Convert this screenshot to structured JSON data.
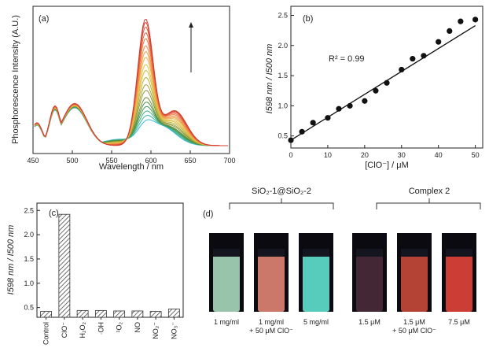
{
  "panels": {
    "a": "(a)",
    "b": "(b)",
    "c": "(c)",
    "d": "(d)"
  },
  "chart_data": [
    {
      "type": "line",
      "panel": "(a)",
      "xlabel": "Wavelength / nm",
      "ylabel": "Phosphorescence Intensity (A.U.)",
      "xlim": [
        450,
        700
      ],
      "xticks": [
        "450",
        "500",
        "550",
        "600",
        "650",
        "700"
      ],
      "yticks_shown": false,
      "annotation": "arrow pointing up (increasing intensity)",
      "peak_nm": 593,
      "series_peak_values": [
        0.12,
        0.16,
        0.2,
        0.24,
        0.28,
        0.32,
        0.38,
        0.43,
        0.49,
        0.55,
        0.6,
        0.66,
        0.71,
        0.76,
        0.82,
        0.87,
        0.92,
        0.96,
        0.99
      ],
      "series_colors": [
        "#3ab7d8",
        "#3ab4a8",
        "#44b07a",
        "#3f9a55",
        "#4f8e45",
        "#70913f",
        "#8c9a3c",
        "#a4a238",
        "#bdb03a",
        "#d2bd40",
        "#e3c346",
        "#ebb34a",
        "#eea24a",
        "#ee8f45",
        "#eb7a40",
        "#e6653b",
        "#e05537",
        "#d94634",
        "#d33a31"
      ]
    },
    {
      "type": "scatter",
      "panel": "(b)",
      "xlabel": "[ClO⁻] / μM",
      "ylabel": "I598 nm / I500 nm",
      "xlim": [
        0,
        52
      ],
      "ylim": [
        0.3,
        2.65
      ],
      "xticks": [
        "0",
        "10",
        "20",
        "30",
        "40",
        "50"
      ],
      "yticks": [
        "0.5",
        "1.0",
        "1.5",
        "2.0",
        "2.5"
      ],
      "annotation": "R² = 0.99",
      "x": [
        0,
        3,
        6,
        10,
        13,
        16,
        20,
        23,
        26,
        30,
        33,
        36,
        40,
        43,
        46,
        50
      ],
      "y": [
        0.43,
        0.57,
        0.72,
        0.8,
        0.95,
        1.0,
        1.08,
        1.25,
        1.38,
        1.6,
        1.78,
        1.83,
        2.06,
        2.24,
        2.4,
        2.43
      ],
      "fit": {
        "x": [
          0,
          50
        ],
        "y": [
          0.43,
          2.33
        ]
      }
    },
    {
      "type": "bar",
      "panel": "(c)",
      "ylabel": "I598 nm / I500 nm",
      "ylim": [
        0.3,
        2.65
      ],
      "yticks": [
        "0.5",
        "1.0",
        "1.5",
        "2.0",
        "2.5"
      ],
      "categories": [
        "Control",
        "ClO⁻",
        "H₂O₂",
        "·OH",
        "¹O₂",
        "NO",
        "NO₂⁻",
        "NO₃⁻"
      ],
      "values": [
        0.42,
        2.42,
        0.44,
        0.44,
        0.43,
        0.43,
        0.42,
        0.47
      ]
    }
  ],
  "photo_panel": {
    "groups": [
      {
        "label": "SiO₂-1@SiO₂-2"
      },
      {
        "label": "Complex 2"
      }
    ],
    "vials": [
      {
        "cap1": "1 mg/ml",
        "cap2": "",
        "color": "#a6d8bd"
      },
      {
        "cap1": "1 mg/ml",
        "cap2": "+ 50 μM ClO⁻",
        "color": "#e08476"
      },
      {
        "cap1": "5 mg/ml",
        "cap2": "",
        "color": "#5fe0cf"
      },
      {
        "cap1": "1.5 μM",
        "cap2": "",
        "color": "#4a2a3a"
      },
      {
        "cap1": "1.5 μM",
        "cap2": "+ 50 μM ClO⁻",
        "color": "#c7493a"
      },
      {
        "cap1": "7.5 μM",
        "cap2": "",
        "color": "#e0433a"
      }
    ]
  }
}
